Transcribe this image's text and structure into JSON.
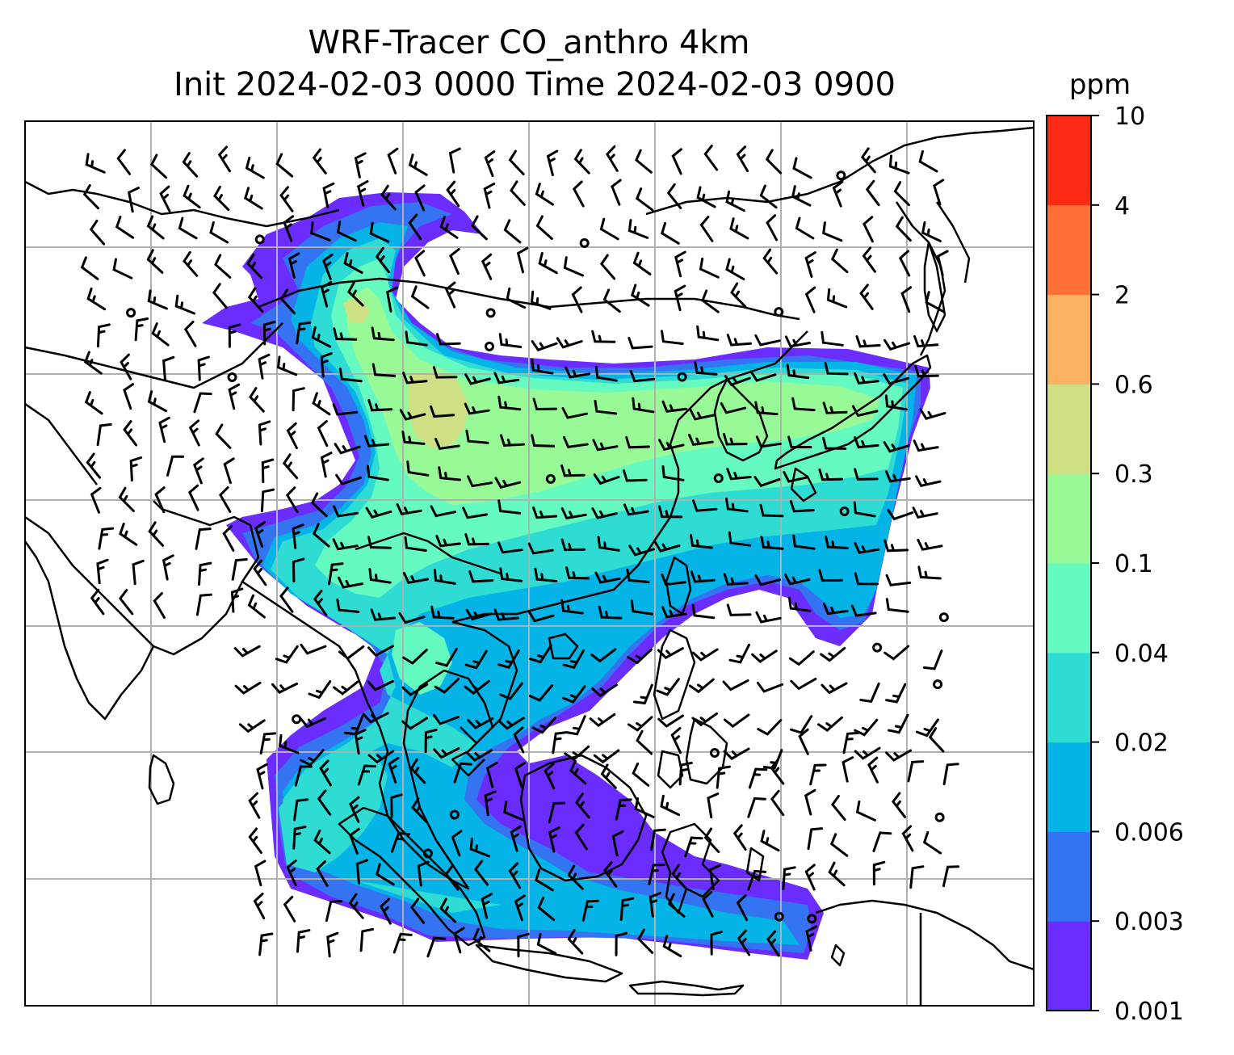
{
  "title": {
    "line1": "WRF-Tracer CO_anthro 4km",
    "line2": "Init 2024-02-03 0000 Time 2024-02-03 0900"
  },
  "colorbar": {
    "unit": "ppm",
    "levels": [
      "0.001",
      "0.003",
      "0.006",
      "0.02",
      "0.04",
      "0.1",
      "0.3",
      "0.6",
      "2",
      "4",
      "10"
    ],
    "colors": [
      "#6a2cff",
      "#3474f2",
      "#05b4e6",
      "#2edcd4",
      "#64fac0",
      "#98fa96",
      "#cfe084",
      "#fcb263",
      "#fd7138",
      "#fd2a16"
    ]
  },
  "map": {
    "gridlines": true,
    "coastline_color": "#000000",
    "gridline_color": "#b0b0b0",
    "fill_levels_used": [
      "#6a2cff",
      "#3474f2",
      "#05b4e6",
      "#2edcd4",
      "#64fac0",
      "#98fa96",
      "#cfe084"
    ]
  }
}
